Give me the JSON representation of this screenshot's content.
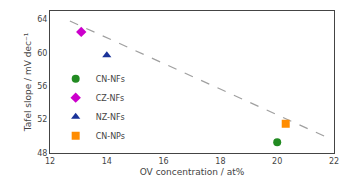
{
  "chart_data": {
    "type": "scatter",
    "xlabel": "OV concentration / at%",
    "ylabel": "Tafel slope / mV dec⁻¹",
    "xlim": [
      12,
      22
    ],
    "ylim": [
      48,
      65
    ],
    "xticks": [
      12,
      14,
      16,
      18,
      20,
      22
    ],
    "yticks": [
      48,
      52,
      56,
      60,
      64
    ],
    "grid": false,
    "legend": "lower left",
    "series": [
      {
        "type": "line",
        "line_style": "dashed",
        "color": "gray",
        "x": [
          12.7,
          21.8
        ],
        "values": [
          63.8,
          49.8
        ]
      },
      {
        "name": "CN-NFs",
        "color": "#228B22",
        "marker": "circle",
        "x": [
          20.0
        ],
        "values": [
          49.3
        ]
      },
      {
        "name": "CZ-NFs",
        "color": "#CC00CC",
        "marker": "diamond",
        "x": [
          13.1
        ],
        "values": [
          62.5
        ]
      },
      {
        "name": "NZ-NFs",
        "color": "#1A3399",
        "marker": "triangle-up",
        "x": [
          14.0
        ],
        "values": [
          59.7
        ]
      },
      {
        "name": "CN-NPs",
        "color": "#FF8C00",
        "marker": "square",
        "x": [
          20.3
        ],
        "values": [
          51.5
        ]
      }
    ]
  }
}
